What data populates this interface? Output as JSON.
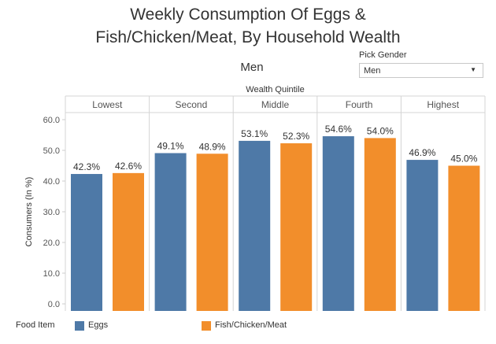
{
  "chart_data": {
    "type": "bar",
    "title_line1": "Weekly Consumption Of Eggs &",
    "title_line2": "Fish/Chicken/Meat, By Household Wealth",
    "subtitle": "Men",
    "column_header": "Wealth Quintile",
    "categories": [
      "Lowest",
      "Second",
      "Middle",
      "Fourth",
      "Highest"
    ],
    "series": [
      {
        "name": "Eggs",
        "color": "#4e79a7",
        "values": [
          42.3,
          49.1,
          53.1,
          54.6,
          46.9
        ],
        "labels": [
          "42.3%",
          "49.1%",
          "53.1%",
          "54.6%",
          "46.9%"
        ]
      },
      {
        "name": "Fish/Chicken/Meat",
        "color": "#f28e2b",
        "values": [
          42.6,
          48.9,
          52.3,
          54.0,
          45.0
        ],
        "labels": [
          "42.6%",
          "48.9%",
          "52.3%",
          "54.0%",
          "45.0%"
        ]
      }
    ],
    "ylabel": "Consumers (In %)",
    "ylim": [
      0,
      62
    ],
    "yticks": [
      0,
      10,
      20,
      30,
      40,
      50,
      60
    ],
    "ytick_labels": [
      "0.0",
      "10.0",
      "20.0",
      "30.0",
      "40.0",
      "50.0",
      "60.0"
    ],
    "legend_title": "Food Item",
    "legend_position": "bottom-left",
    "grid": false
  },
  "filter": {
    "label": "Pick Gender",
    "value": "Men",
    "arrow_icon": "caret-down-icon"
  }
}
